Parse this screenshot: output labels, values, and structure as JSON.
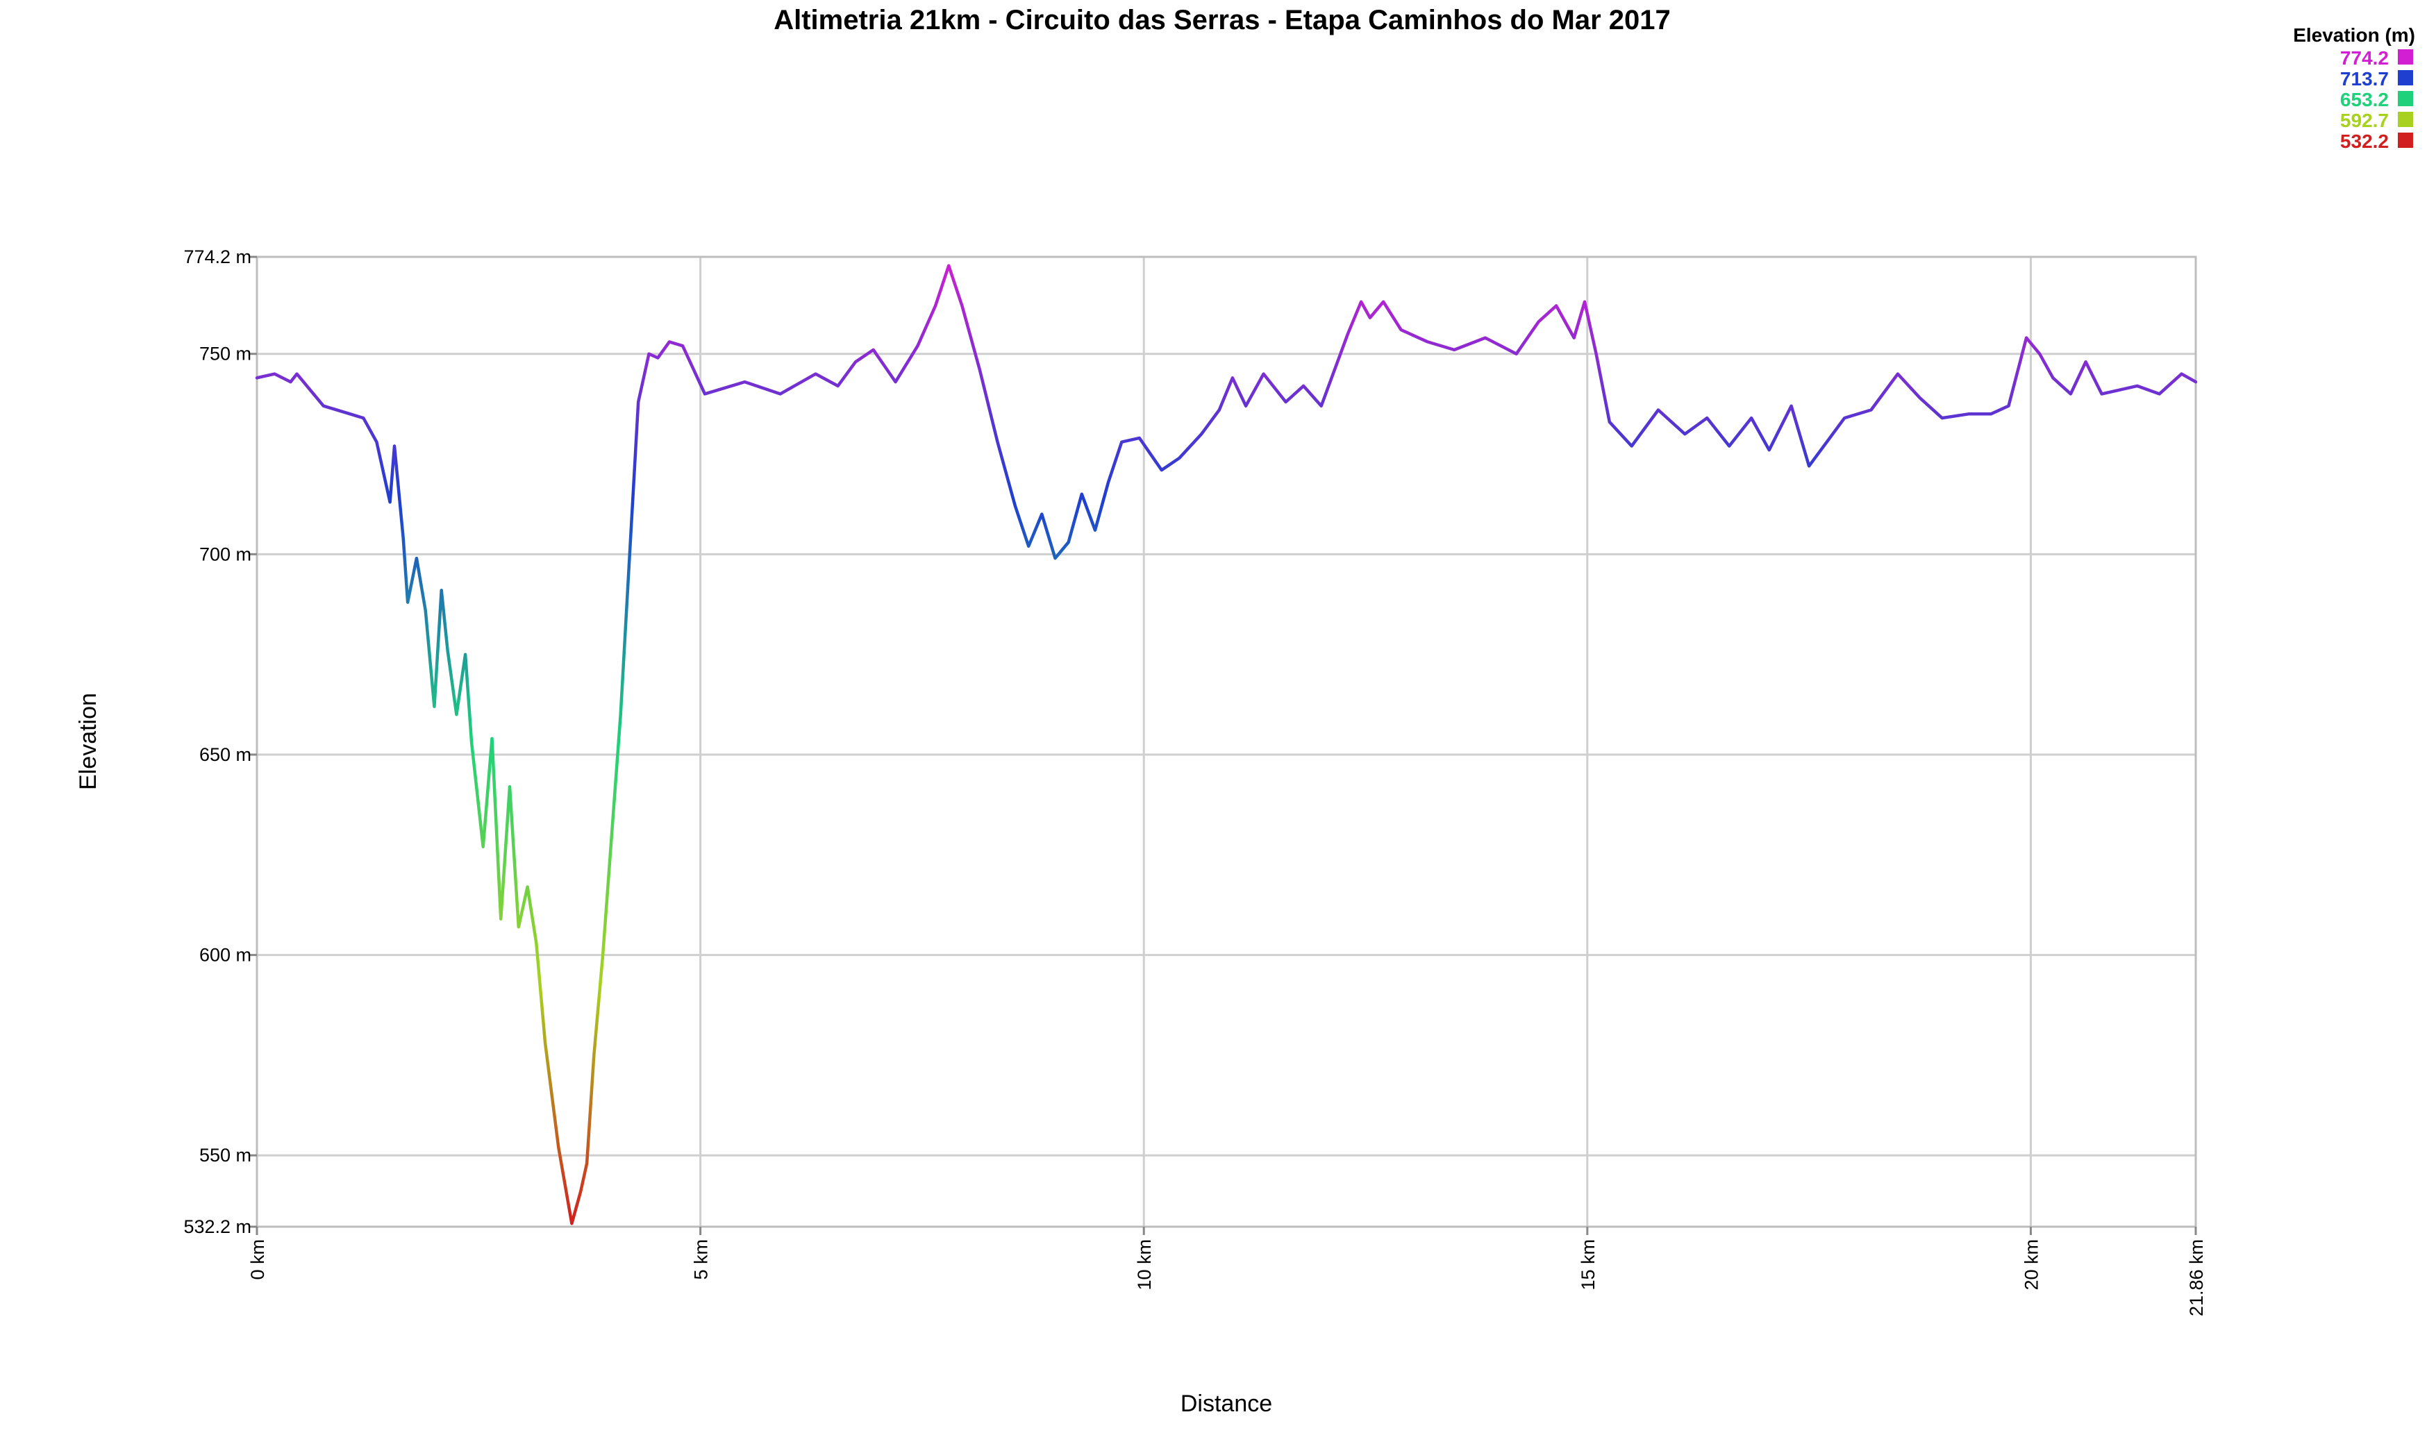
{
  "chart_data": {
    "type": "line",
    "title": "Altimetria 21km - Circuito das Serras - Etapa Caminhos do Mar 2017",
    "xlabel": "Distance",
    "ylabel": "Elevation",
    "x_unit": "km",
    "y_unit": "m",
    "xlim": [
      0,
      21.86
    ],
    "ylim": [
      532.2,
      774.2
    ],
    "x_ticks": [
      {
        "value": 0,
        "label": "0 km"
      },
      {
        "value": 5,
        "label": "5 km"
      },
      {
        "value": 10,
        "label": "10 km"
      },
      {
        "value": 15,
        "label": "15 km"
      },
      {
        "value": 20,
        "label": "20 km"
      },
      {
        "value": 21.86,
        "label": "21.86 km"
      }
    ],
    "y_ticks": [
      {
        "value": 532.2,
        "label": "532.2 m"
      },
      {
        "value": 550,
        "label": "550 m"
      },
      {
        "value": 600,
        "label": "600 m"
      },
      {
        "value": 650,
        "label": "650 m"
      },
      {
        "value": 700,
        "label": "700 m"
      },
      {
        "value": 750,
        "label": "750 m"
      },
      {
        "value": 774.2,
        "label": "774.2 m"
      }
    ],
    "grid": true,
    "legend": {
      "title": "Elevation (m)",
      "position": "top-right",
      "entries": [
        {
          "label": "774.2",
          "value": 774.2,
          "color": "#d11fd1"
        },
        {
          "label": "713.7",
          "value": 713.7,
          "color": "#1f3fd1"
        },
        {
          "label": "653.2",
          "value": 653.2,
          "color": "#1fd17a"
        },
        {
          "label": "592.7",
          "value": 592.7,
          "color": "#a8d11f"
        },
        {
          "label": "532.2",
          "value": 532.2,
          "color": "#d11f1f"
        }
      ]
    },
    "series": [
      {
        "x": [
          0,
          0.2,
          0.38,
          0.45,
          0.75,
          1.2,
          1.35,
          1.5,
          1.55,
          1.65,
          1.7,
          1.8,
          1.9,
          2.0,
          2.08,
          2.15,
          2.25,
          2.35,
          2.42,
          2.55,
          2.65,
          2.75,
          2.85,
          2.95,
          3.05,
          3.15,
          3.25,
          3.4,
          3.55,
          3.65,
          3.72,
          3.8,
          3.9,
          4.1,
          4.3,
          4.42,
          4.52,
          4.65,
          4.8,
          5.05,
          5.5,
          5.9,
          6.3,
          6.55,
          6.75,
          6.95,
          7.2,
          7.45,
          7.65,
          7.8,
          7.95,
          8.15,
          8.35,
          8.55,
          8.7,
          8.85,
          9.0,
          9.15,
          9.3,
          9.45,
          9.6,
          9.75,
          9.95,
          10.2,
          10.4,
          10.65,
          10.85,
          11.0,
          11.15,
          11.35,
          11.6,
          11.8,
          12.0,
          12.3,
          12.45,
          12.55,
          12.7,
          12.9,
          13.2,
          13.5,
          13.85,
          14.2,
          14.45,
          14.65,
          14.85,
          14.97,
          15.1,
          15.25,
          15.5,
          15.8,
          16.1,
          16.35,
          16.6,
          16.85,
          17.05,
          17.3,
          17.5,
          17.7,
          17.9,
          18.2,
          18.5,
          18.75,
          19.0,
          19.3,
          19.55,
          19.75,
          19.95,
          20.1,
          20.25,
          20.45,
          20.62,
          20.8,
          21.0,
          21.2,
          21.45,
          21.7,
          21.86
        ],
        "y": [
          744,
          745,
          743,
          745,
          737,
          734,
          728,
          713,
          727,
          704,
          688,
          699,
          686,
          662,
          691,
          676,
          660,
          675,
          653,
          627,
          654,
          609,
          642,
          607,
          617,
          603,
          578,
          552,
          533,
          541,
          548,
          575,
          600,
          660,
          738,
          750,
          749,
          753,
          752,
          740,
          743,
          740,
          745,
          742,
          748,
          751,
          743,
          752,
          762,
          772,
          762,
          746,
          728,
          712,
          702,
          710,
          699,
          703,
          715,
          706,
          718,
          728,
          729,
          721,
          724,
          730,
          736,
          744,
          737,
          745,
          738,
          742,
          737,
          755,
          763,
          759,
          763,
          756,
          753,
          751,
          754,
          750,
          758,
          762,
          754,
          763,
          750,
          733,
          727,
          736,
          730,
          734,
          727,
          734,
          726,
          737,
          722,
          728,
          734,
          736,
          745,
          739,
          734,
          735,
          735,
          737,
          754,
          750,
          744,
          740,
          748,
          740,
          741,
          742,
          740,
          745,
          743
        ]
      }
    ]
  }
}
